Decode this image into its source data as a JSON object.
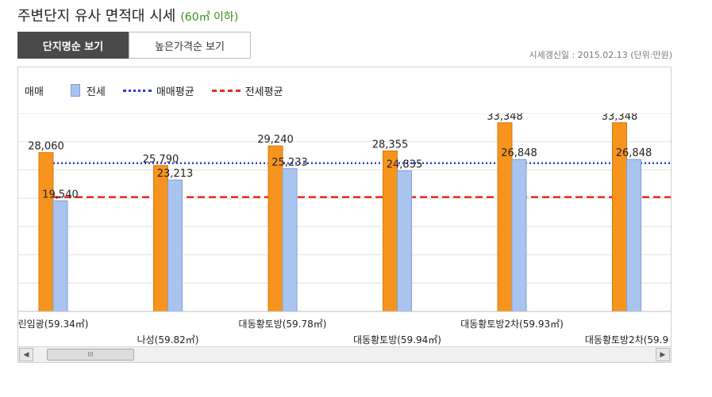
{
  "header": {
    "title": "주변단지 유사 면적대 시세",
    "subtitle": "(60㎡ 이하)"
  },
  "tabs": [
    {
      "label": "단지명순 보기"
    },
    {
      "label": "높은가격순 보기"
    }
  ],
  "meta": {
    "text": "시세갱신일 : 2015.02.13 (단위:만원)"
  },
  "legend": {
    "sale": "매매",
    "jeonse": "전세",
    "sale_avg": "매매평균",
    "jeonse_avg": "전세평균"
  },
  "chart_data": {
    "type": "bar",
    "categories": [
      "린임광(59.34㎡)",
      "나성(59.82㎡)",
      "대동황토방(59.78㎡)",
      "대동황토방(59.94㎡)",
      "대동황토방2차(59.93㎡)",
      "대동황토방2차(59.9"
    ],
    "series": [
      {
        "name": "매매",
        "values": [
          28060,
          25790,
          29240,
          28355,
          33348,
          33348
        ],
        "labels": [
          "28,060",
          "25,790",
          "29,240",
          "28,355",
          "33,348",
          "33,348"
        ],
        "color": "#f7941d"
      },
      {
        "name": "전세",
        "values": [
          19540,
          23213,
          25233,
          24835,
          26848,
          26848
        ],
        "labels": [
          "19,540",
          "23,213",
          "25,233",
          "24,835",
          "26,848",
          "26,848"
        ],
        "color": "#a8c4ef"
      }
    ],
    "averages": [
      {
        "name": "매매평균",
        "value": 26200,
        "color": "#2a3bd6",
        "style": "dotted"
      },
      {
        "name": "전세평균",
        "value": 20200,
        "color": "#ee2a1c",
        "style": "dashed"
      }
    ],
    "ylim": [
      0,
      35000
    ],
    "grid": true
  },
  "scrollbar": {
    "thumb_glyph": "III",
    "left_glyph": "◀",
    "right_glyph": "▶"
  }
}
